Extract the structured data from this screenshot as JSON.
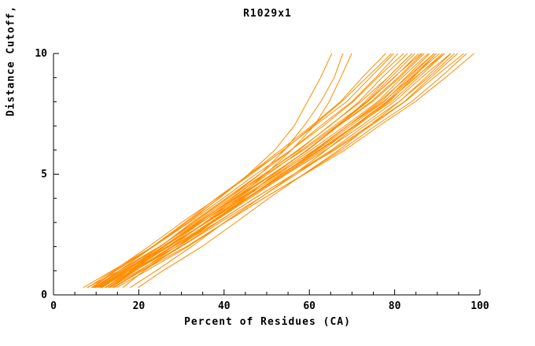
{
  "title": "R1029x1",
  "chart_data": {
    "type": "line",
    "title": "R1029x1",
    "xlabel": "Percent of Residues (CA)",
    "ylabel": "Distance Cutoff, A",
    "xlim": [
      0,
      100
    ],
    "ylim": [
      0,
      10
    ],
    "x_major_ticks": [
      0,
      20,
      40,
      60,
      80,
      100
    ],
    "x_minor_step": 5,
    "y_major_ticks": [
      0,
      5,
      10
    ],
    "y_minor_step": 1,
    "grid": false,
    "legend": "none",
    "line_color": "#ff8c00",
    "axis_color": "#000000",
    "y_grid": [
      0.3,
      1,
      2,
      3,
      4,
      5,
      6,
      7,
      8,
      9,
      10
    ],
    "series": [
      {
        "x": [
          8,
          13.8,
          22.4,
          30.3,
          38.2,
          46.2,
          54.1,
          61.3,
          68.5,
          74.2,
          80
        ]
      },
      {
        "x": [
          9,
          14.8,
          23.6,
          31.6,
          39.7,
          47.7,
          55.7,
          63.0,
          70.3,
          76.2,
          82
        ]
      },
      {
        "x": [
          10,
          15.9,
          24.8,
          32.9,
          41.1,
          49.2,
          57.4,
          64.8,
          72.2,
          78.1,
          84
        ]
      },
      {
        "x": [
          11,
          16.9,
          25.8,
          33.9,
          42.1,
          50.2,
          58.4,
          65.8,
          73.2,
          79.1,
          85
        ]
      },
      {
        "x": [
          9.5,
          15.6,
          24.8,
          33.2,
          41.6,
          50.0,
          58.5,
          66.1,
          73.8,
          79.9,
          86
        ]
      },
      {
        "x": [
          10.5,
          16.6,
          25.8,
          34.2,
          42.6,
          51.0,
          59.5,
          67.1,
          74.8,
          80.9,
          87
        ]
      },
      {
        "x": [
          12,
          18.1,
          27.2,
          35.6,
          43.9,
          52.3,
          60.6,
          68.2,
          75.8,
          81.9,
          88
        ]
      },
      {
        "x": [
          11.5,
          17.7,
          27.0,
          35.5,
          44.1,
          52.6,
          61.1,
          68.9,
          76.6,
          82.8,
          89
        ]
      },
      {
        "x": [
          10,
          16.4,
          26.0,
          34.8,
          43.6,
          52.4,
          61.2,
          69.2,
          77.2,
          83.6,
          90
        ]
      },
      {
        "x": [
          12.5,
          18.7,
          28.1,
          36.7,
          45.3,
          53.8,
          62.4,
          70.2,
          78.0,
          84.3,
          90.5
        ]
      },
      {
        "x": [
          13,
          19.2,
          28.6,
          37.2,
          45.8,
          54.3,
          62.9,
          70.7,
          78.5,
          84.8,
          91
        ]
      },
      {
        "x": [
          11,
          17.5,
          27.2,
          36.1,
          45.0,
          53.9,
          62.8,
          70.9,
          79.0,
          85.5,
          92
        ]
      },
      {
        "x": [
          12,
          18.5,
          28.2,
          37.1,
          46.0,
          54.9,
          63.8,
          71.9,
          80.0,
          86.5,
          93
        ]
      },
      {
        "x": [
          13.5,
          19.9,
          29.6,
          38.5,
          47.3,
          56.2,
          65.0,
          73.1,
          81.1,
          87.6,
          94
        ]
      },
      {
        "x": [
          14,
          20.5,
          30.2,
          39.1,
          48.0,
          56.9,
          65.8,
          73.9,
          82.0,
          88.5,
          95
        ]
      },
      {
        "x": [
          12,
          18.7,
          28.8,
          38.0,
          47.3,
          56.5,
          65.8,
          74.2,
          82.6,
          89.3,
          96
        ]
      },
      {
        "x": [
          15,
          21.6,
          31.4,
          40.4,
          49.4,
          58.5,
          67.5,
          75.7,
          83.9,
          90.4,
          97
        ]
      },
      {
        "x": [
          10,
          15.4,
          23.6,
          31.1,
          38.6,
          46.0,
          53.5,
          60.3,
          67.1,
          72.6,
          78
        ]
      },
      {
        "x": [
          9,
          14.6,
          23.0,
          30.7,
          38.4,
          46.1,
          53.8,
          60.8,
          67.8,
          73.4,
          79
        ]
      },
      {
        "x": [
          11,
          16.6,
          25.0,
          32.7,
          40.4,
          48.1,
          55.8,
          62.8,
          69.8,
          75.4,
          81
        ]
      },
      {
        "x": [
          12,
          17.7,
          26.2,
          34.0,
          41.8,
          49.6,
          57.4,
          64.5,
          71.6,
          77.3,
          83
        ]
      },
      {
        "x": [
          13,
          18.8,
          27.5,
          35.5,
          43.5,
          51.4,
          59.4,
          66.7,
          73.9,
          79.7,
          85.5
        ]
      },
      {
        "x": [
          14,
          20.0,
          28.9,
          37.1,
          45.3,
          53.5,
          61.7,
          69.1,
          76.6,
          82.5,
          88.5
        ]
      },
      {
        "x": [
          10.5,
          17.0,
          26.7,
          35.6,
          44.5,
          53.4,
          62.3,
          70.4,
          78.5,
          85.0,
          91.5
        ]
      },
      {
        "x": [
          11.5,
          17.5,
          26.5,
          34.8,
          43.0,
          51.3,
          59.5,
          67.0,
          74.5,
          80.5,
          86.5
        ]
      },
      {
        "x": [
          13,
          19.1,
          28.3,
          36.7,
          45.1,
          53.5,
          62.0,
          69.6,
          77.3,
          83.4,
          89.5
        ]
      },
      {
        "x": [
          7,
          14.0,
          23.2,
          31.4,
          38.9,
          45.9,
          51.7,
          56.3,
          59.8,
          62.7,
          65
        ]
      },
      {
        "x": [
          8,
          15.2,
          24.8,
          33.2,
          41.0,
          48.2,
          54.2,
          59.0,
          62.6,
          65.6,
          68
        ]
      },
      {
        "x": [
          9,
          16.3,
          26.1,
          34.6,
          42.6,
          49.9,
          56.0,
          60.9,
          64.5,
          67.6,
          70
        ]
      },
      {
        "x": [
          20,
          25.8,
          34.6,
          42.6,
          50.7,
          58.7,
          66.7,
          74.0,
          81.3,
          87.2,
          93
        ]
      },
      {
        "x": [
          18,
          23.8,
          32.4,
          40.3,
          48.2,
          56.2,
          64.1,
          71.3,
          78.5,
          84.2,
          90
        ]
      },
      {
        "x": [
          16,
          21.4,
          29.6,
          37.1,
          44.6,
          52.0,
          59.5,
          66.3,
          73.1,
          78.6,
          84
        ]
      },
      {
        "x": [
          14,
          20.8,
          30.9,
          40.2,
          49.5,
          58.8,
          68.1,
          76.5,
          85.0,
          91.7,
          98.5
        ]
      }
    ]
  }
}
